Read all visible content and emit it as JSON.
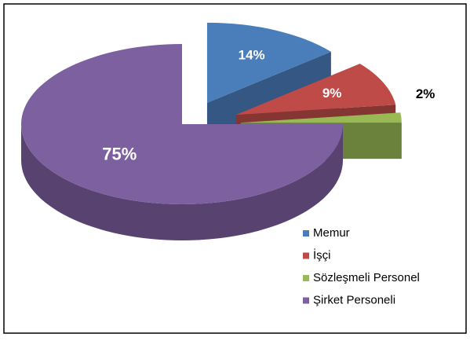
{
  "chart_data": {
    "type": "pie",
    "categories": [
      "Memur",
      "İşçi",
      "Sözleşmeli Personel",
      "Şirket Personeli"
    ],
    "values": [
      14,
      9,
      2,
      75
    ],
    "value_labels": [
      "14%",
      "9%",
      "2%",
      "75%"
    ],
    "colors": [
      "#4a7ebb",
      "#be4b48",
      "#98b954",
      "#7d60a0"
    ],
    "legend": "bottom-right"
  }
}
